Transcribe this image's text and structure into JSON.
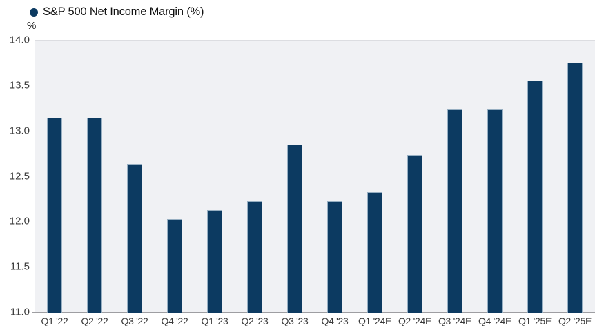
{
  "legend": {
    "label": "S&P 500 Net Income Margin (%)"
  },
  "y_axis": {
    "unit": "%"
  },
  "chart_data": {
    "type": "bar",
    "title": "S&P 500 Net Income Margin (%)",
    "xlabel": "",
    "ylabel": "%",
    "categories": [
      "Q1 '22",
      "Q2 '22",
      "Q3 '22",
      "Q4 '22",
      "Q1 '23",
      "Q2 '23",
      "Q3 '23",
      "Q4 '23",
      "Q1 '24E",
      "Q2 '24E",
      "Q3 '24E",
      "Q4 '24E",
      "Q1 '25E",
      "Q2 '25E"
    ],
    "values": [
      13.15,
      13.15,
      12.64,
      12.03,
      12.13,
      12.23,
      12.85,
      12.23,
      12.33,
      12.74,
      13.25,
      13.25,
      13.56,
      13.76
    ],
    "ylim": [
      11.0,
      14.0
    ],
    "yticks": [
      "14.0",
      "13.5",
      "13.0",
      "12.5",
      "12.0",
      "11.5",
      "11.0"
    ],
    "grid": false,
    "legend_position": "top-left",
    "colors": {
      "bar": "#0c3a61",
      "plot_background": "#f0f1f4",
      "axis_line": "#9e9ea2",
      "legend_dot": "#0c3a61"
    }
  }
}
